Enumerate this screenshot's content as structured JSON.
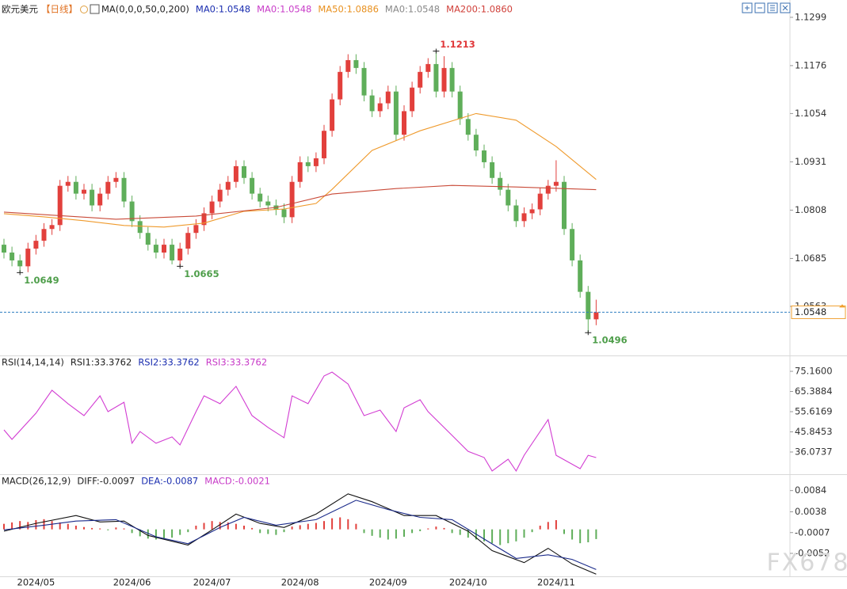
{
  "chart_data": [
    {
      "type": "candlestick",
      "title": "欧元美元",
      "subtitle": "【日线】",
      "legend": [
        {
          "text": "MA(0,0,0,50,0,200)",
          "color": "#222222"
        },
        {
          "text": "MA0:1.0548",
          "color": "#1c2fb0"
        },
        {
          "text": "MA0:1.0548",
          "color": "#c83cc8"
        },
        {
          "text": "MA50:1.0886",
          "color": "#e8901e"
        },
        {
          "text": "MA0:1.0548",
          "color": "#888888"
        },
        {
          "text": "MA200:1.0860",
          "color": "#d0403a"
        }
      ],
      "categories": [
        null,
        null,
        null,
        null,
        "2024/05",
        null,
        null,
        null,
        null,
        null,
        null,
        null,
        null,
        null,
        null,
        null,
        "2024/06",
        null,
        null,
        null,
        null,
        null,
        null,
        null,
        null,
        null,
        "2024/07",
        null,
        null,
        null,
        null,
        null,
        null,
        null,
        null,
        null,
        null,
        "2024/08",
        null,
        null,
        null,
        null,
        null,
        null,
        null,
        null,
        null,
        null,
        "2024/09",
        null,
        null,
        null,
        null,
        null,
        null,
        null,
        null,
        null,
        "2024/10",
        null,
        null,
        null,
        null,
        null,
        null,
        null,
        null,
        null,
        null,
        "2024/11",
        null,
        null,
        null,
        null,
        null
      ],
      "open": [
        1.072,
        1.07,
        1.068,
        1.0665,
        1.071,
        1.073,
        1.076,
        1.077,
        1.087,
        1.088,
        1.085,
        1.086,
        1.082,
        1.085,
        1.088,
        1.089,
        1.083,
        1.078,
        1.075,
        1.072,
        1.07,
        1.072,
        1.068,
        1.071,
        1.075,
        1.077,
        1.08,
        1.083,
        1.086,
        1.088,
        1.092,
        1.089,
        1.085,
        1.083,
        1.082,
        1.081,
        1.079,
        1.088,
        1.093,
        1.092,
        1.094,
        1.101,
        1.109,
        1.116,
        1.119,
        1.117,
        1.11,
        1.106,
        1.108,
        1.111,
        1.1,
        1.106,
        1.112,
        1.116,
        1.118,
        1.111,
        1.117,
        1.111,
        1.104,
        1.1,
        1.096,
        1.093,
        1.089,
        1.086,
        1.082,
        1.078,
        1.08,
        1.081,
        1.085,
        1.087,
        1.088,
        1.076,
        1.068,
        1.06,
        1.053
      ],
      "high": [
        1.0735,
        1.0715,
        1.0695,
        1.0725,
        1.0745,
        1.0775,
        1.0785,
        1.0885,
        1.0895,
        1.0895,
        1.0875,
        1.0875,
        1.0865,
        1.0895,
        1.0905,
        1.0905,
        1.0845,
        1.0795,
        1.0765,
        1.0735,
        1.0735,
        1.0735,
        1.0725,
        1.0765,
        1.0785,
        1.0815,
        1.0845,
        1.0875,
        1.0895,
        1.0935,
        1.0935,
        1.0905,
        1.0865,
        1.0845,
        1.0835,
        1.0825,
        1.0895,
        1.0945,
        1.0945,
        1.0955,
        1.1025,
        1.1105,
        1.1175,
        1.1205,
        1.1205,
        1.1185,
        1.1115,
        1.1095,
        1.1125,
        1.1125,
        1.1075,
        1.1135,
        1.1175,
        1.1195,
        1.1213,
        1.12,
        1.1185,
        1.1125,
        1.1055,
        1.1015,
        1.0975,
        1.0945,
        1.0905,
        1.0875,
        1.0835,
        1.0815,
        1.0825,
        1.0865,
        1.0885,
        1.0935,
        1.0895,
        1.0775,
        1.0695,
        1.0615,
        1.058
      ],
      "low": [
        1.0685,
        1.0665,
        1.0649,
        1.065,
        1.0695,
        1.0715,
        1.0745,
        1.0755,
        1.0855,
        1.0835,
        1.0835,
        1.0805,
        1.0805,
        1.0835,
        1.0865,
        1.0815,
        1.0765,
        1.0735,
        1.0705,
        1.0685,
        1.0685,
        1.067,
        1.0665,
        1.0695,
        1.0735,
        1.0755,
        1.0785,
        1.0815,
        1.0845,
        1.0865,
        1.0875,
        1.0835,
        1.0815,
        1.0805,
        1.0795,
        1.0775,
        1.0775,
        1.0865,
        1.0905,
        1.0905,
        1.0925,
        1.0995,
        1.1075,
        1.1145,
        1.1155,
        1.1085,
        1.1045,
        1.1045,
        1.1065,
        1.0985,
        1.0985,
        1.1045,
        1.1105,
        1.1145,
        1.1095,
        1.1095,
        1.1095,
        1.1025,
        1.0985,
        1.0945,
        1.0915,
        1.0875,
        1.0845,
        1.0805,
        1.0765,
        1.0765,
        1.0785,
        1.0795,
        1.0835,
        1.0855,
        1.0745,
        1.0665,
        1.0585,
        1.0496,
        1.0515
      ],
      "close": [
        1.07,
        1.068,
        1.0665,
        1.071,
        1.073,
        1.076,
        1.077,
        1.087,
        1.088,
        1.085,
        1.086,
        1.082,
        1.085,
        1.088,
        1.089,
        1.083,
        1.078,
        1.075,
        1.072,
        1.07,
        1.072,
        1.068,
        1.071,
        1.075,
        1.077,
        1.08,
        1.083,
        1.086,
        1.088,
        1.092,
        1.089,
        1.085,
        1.083,
        1.082,
        1.081,
        1.079,
        1.088,
        1.093,
        1.092,
        1.094,
        1.101,
        1.109,
        1.116,
        1.119,
        1.117,
        1.11,
        1.106,
        1.108,
        1.111,
        1.1,
        1.106,
        1.112,
        1.116,
        1.118,
        1.111,
        1.117,
        1.111,
        1.104,
        1.1,
        1.096,
        1.093,
        1.089,
        1.086,
        1.082,
        1.078,
        1.08,
        1.081,
        1.085,
        1.087,
        1.088,
        1.076,
        1.068,
        1.06,
        1.053,
        1.0548
      ],
      "up_color": "#e2403c",
      "down_color": "#5fae5a",
      "high_label_color": "#e0383a",
      "low_label_color": "#4e9e4a",
      "last_color": "#2f7fc0",
      "series": [
        {
          "color": "#ef9a2c",
          "x": [
            0,
            5,
            10,
            15,
            20,
            25,
            30,
            35,
            39,
            41,
            46,
            52,
            59,
            64,
            69,
            74
          ],
          "values": [
            1.0799,
            1.0791,
            1.0781,
            1.0769,
            1.0765,
            1.0775,
            1.0805,
            1.0811,
            1.0825,
            1.0861,
            1.096,
            1.101,
            1.1054,
            1.1037,
            1.097,
            1.0886
          ]
        },
        {
          "color": "#c94a38",
          "x": [
            0,
            14,
            24,
            34,
            41,
            49,
            56,
            64,
            74
          ],
          "values": [
            1.0803,
            1.0785,
            1.0793,
            1.0815,
            1.0849,
            1.0863,
            1.0871,
            1.0867,
            1.086
          ]
        }
      ],
      "ylim": [
        1.044,
        1.1333
      ],
      "yticks": [
        1.1299,
        1.1176,
        1.1054,
        1.0931,
        1.0808,
        1.0685,
        1.0563
      ]
    },
    {
      "type": "line",
      "legend": [
        {
          "text": "RSI(14,14,14)",
          "color": "#222222"
        },
        {
          "text": "RSI1:33.3762",
          "color": "#222222"
        },
        {
          "text": "RSI2:33.3762",
          "color": "#1c2fb0"
        },
        {
          "text": "RSI3:33.3762",
          "color": "#c83cc8"
        }
      ],
      "series": [
        {
          "color": "#d23cd2",
          "x": [
            0,
            1,
            4,
            6,
            8,
            10,
            12,
            13,
            15,
            16,
            17,
            19,
            21,
            22,
            24,
            25,
            27,
            29,
            31,
            33,
            35,
            36,
            38,
            40,
            41,
            43,
            45,
            47,
            49,
            50,
            52,
            53,
            56,
            58,
            60,
            61,
            63,
            64,
            65,
            68,
            69,
            72,
            73,
            74
          ],
          "values": [
            46.8,
            42.2,
            54.9,
            66.0,
            59.5,
            53.7,
            63.3,
            55.6,
            60.2,
            40.3,
            46.0,
            40.3,
            43.4,
            39.5,
            55.6,
            63.3,
            59.5,
            67.9,
            53.7,
            48.0,
            43.0,
            63.3,
            59.5,
            72.9,
            74.8,
            69.0,
            53.7,
            56.4,
            46.0,
            57.5,
            61.4,
            55.6,
            44.1,
            36.4,
            33.4,
            26.9,
            32.6,
            26.9,
            34.5,
            51.8,
            34.5,
            28.0,
            34.5,
            33.3762
          ]
        }
      ],
      "ylim": [
        25.7,
        81.7
      ],
      "yticks": [
        {
          "value": 75.16,
          "label": "75.1600"
        },
        65.3884,
        55.6169,
        45.8453,
        36.0737
      ]
    },
    {
      "type": "macd",
      "legend": [
        {
          "text": "MACD(26,12,9)",
          "color": "#222222"
        },
        {
          "text": "DIFF:-0.0097",
          "color": "#222222"
        },
        {
          "text": "DEA:-0.0087",
          "color": "#1c2fb0"
        },
        {
          "text": "MACD:-0.0021",
          "color": "#c83cc8"
        }
      ],
      "series": [
        {
          "color": "#111111",
          "x": [
            0,
            4,
            9,
            12,
            15,
            18,
            23,
            26,
            29,
            32,
            35,
            39,
            43,
            46,
            50,
            54,
            58,
            61,
            65,
            68,
            71,
            74
          ],
          "values": [
            -0.0004,
            0.0013,
            0.003,
            0.0016,
            0.0018,
            -0.0013,
            -0.0034,
            -0.0001,
            0.0033,
            0.0013,
            0.0004,
            0.0033,
            0.0077,
            0.006,
            0.003,
            0.003,
            -0.0004,
            -0.0046,
            -0.0072,
            -0.0041,
            -0.0075,
            -0.0097
          ]
        },
        {
          "color": "#1a2a8a",
          "x": [
            0,
            5,
            9,
            14,
            19,
            23,
            27,
            30,
            34,
            39,
            44,
            48,
            52,
            56,
            60,
            64,
            68,
            71,
            74
          ],
          "values": [
            -0.0001,
            0.0009,
            0.0018,
            0.0021,
            -0.0016,
            -0.0031,
            0.0004,
            0.0026,
            0.0009,
            0.0021,
            0.0063,
            0.0043,
            0.0026,
            0.0021,
            -0.0021,
            -0.0063,
            -0.0055,
            -0.0065,
            -0.0087
          ]
        }
      ],
      "bars": [
        0.0012,
        0.0015,
        0.0018,
        0.0016,
        0.002,
        0.0022,
        0.0018,
        0.0015,
        0.0012,
        0.0008,
        0.0005,
        0.0003,
        0.0002,
        -0.0002,
        0.0004,
        0.0002,
        -0.0008,
        -0.0015,
        -0.002,
        -0.0022,
        -0.002,
        -0.0018,
        -0.0012,
        -0.0006,
        0.0008,
        0.0014,
        0.0018,
        0.0016,
        0.0015,
        0.0012,
        0.0008,
        0.0003,
        -0.0008,
        -0.001,
        -0.0012,
        -0.0006,
        0.0006,
        0.0009,
        0.0012,
        0.0014,
        0.0018,
        0.0024,
        0.0026,
        0.0022,
        0.0012,
        -0.0008,
        -0.0014,
        -0.0018,
        -0.0022,
        -0.002,
        -0.0016,
        -0.0008,
        -0.0004,
        0.0002,
        0.0006,
        0.0003,
        -0.0008,
        -0.0012,
        -0.0018,
        -0.0022,
        -0.0026,
        -0.003,
        -0.0034,
        -0.003,
        -0.0026,
        -0.0018,
        -0.0006,
        0.0008,
        0.0016,
        0.002,
        -0.001,
        -0.0022,
        -0.003,
        -0.0028,
        -0.0021
      ],
      "up_color": "#e2403c",
      "down_color": "#5fae5a",
      "ylim": [
        -0.01,
        0.0116
      ],
      "yticks": [
        0.0084,
        0.0038,
        -0.0007,
        -0.0052
      ]
    }
  ],
  "watermark": "FX678"
}
